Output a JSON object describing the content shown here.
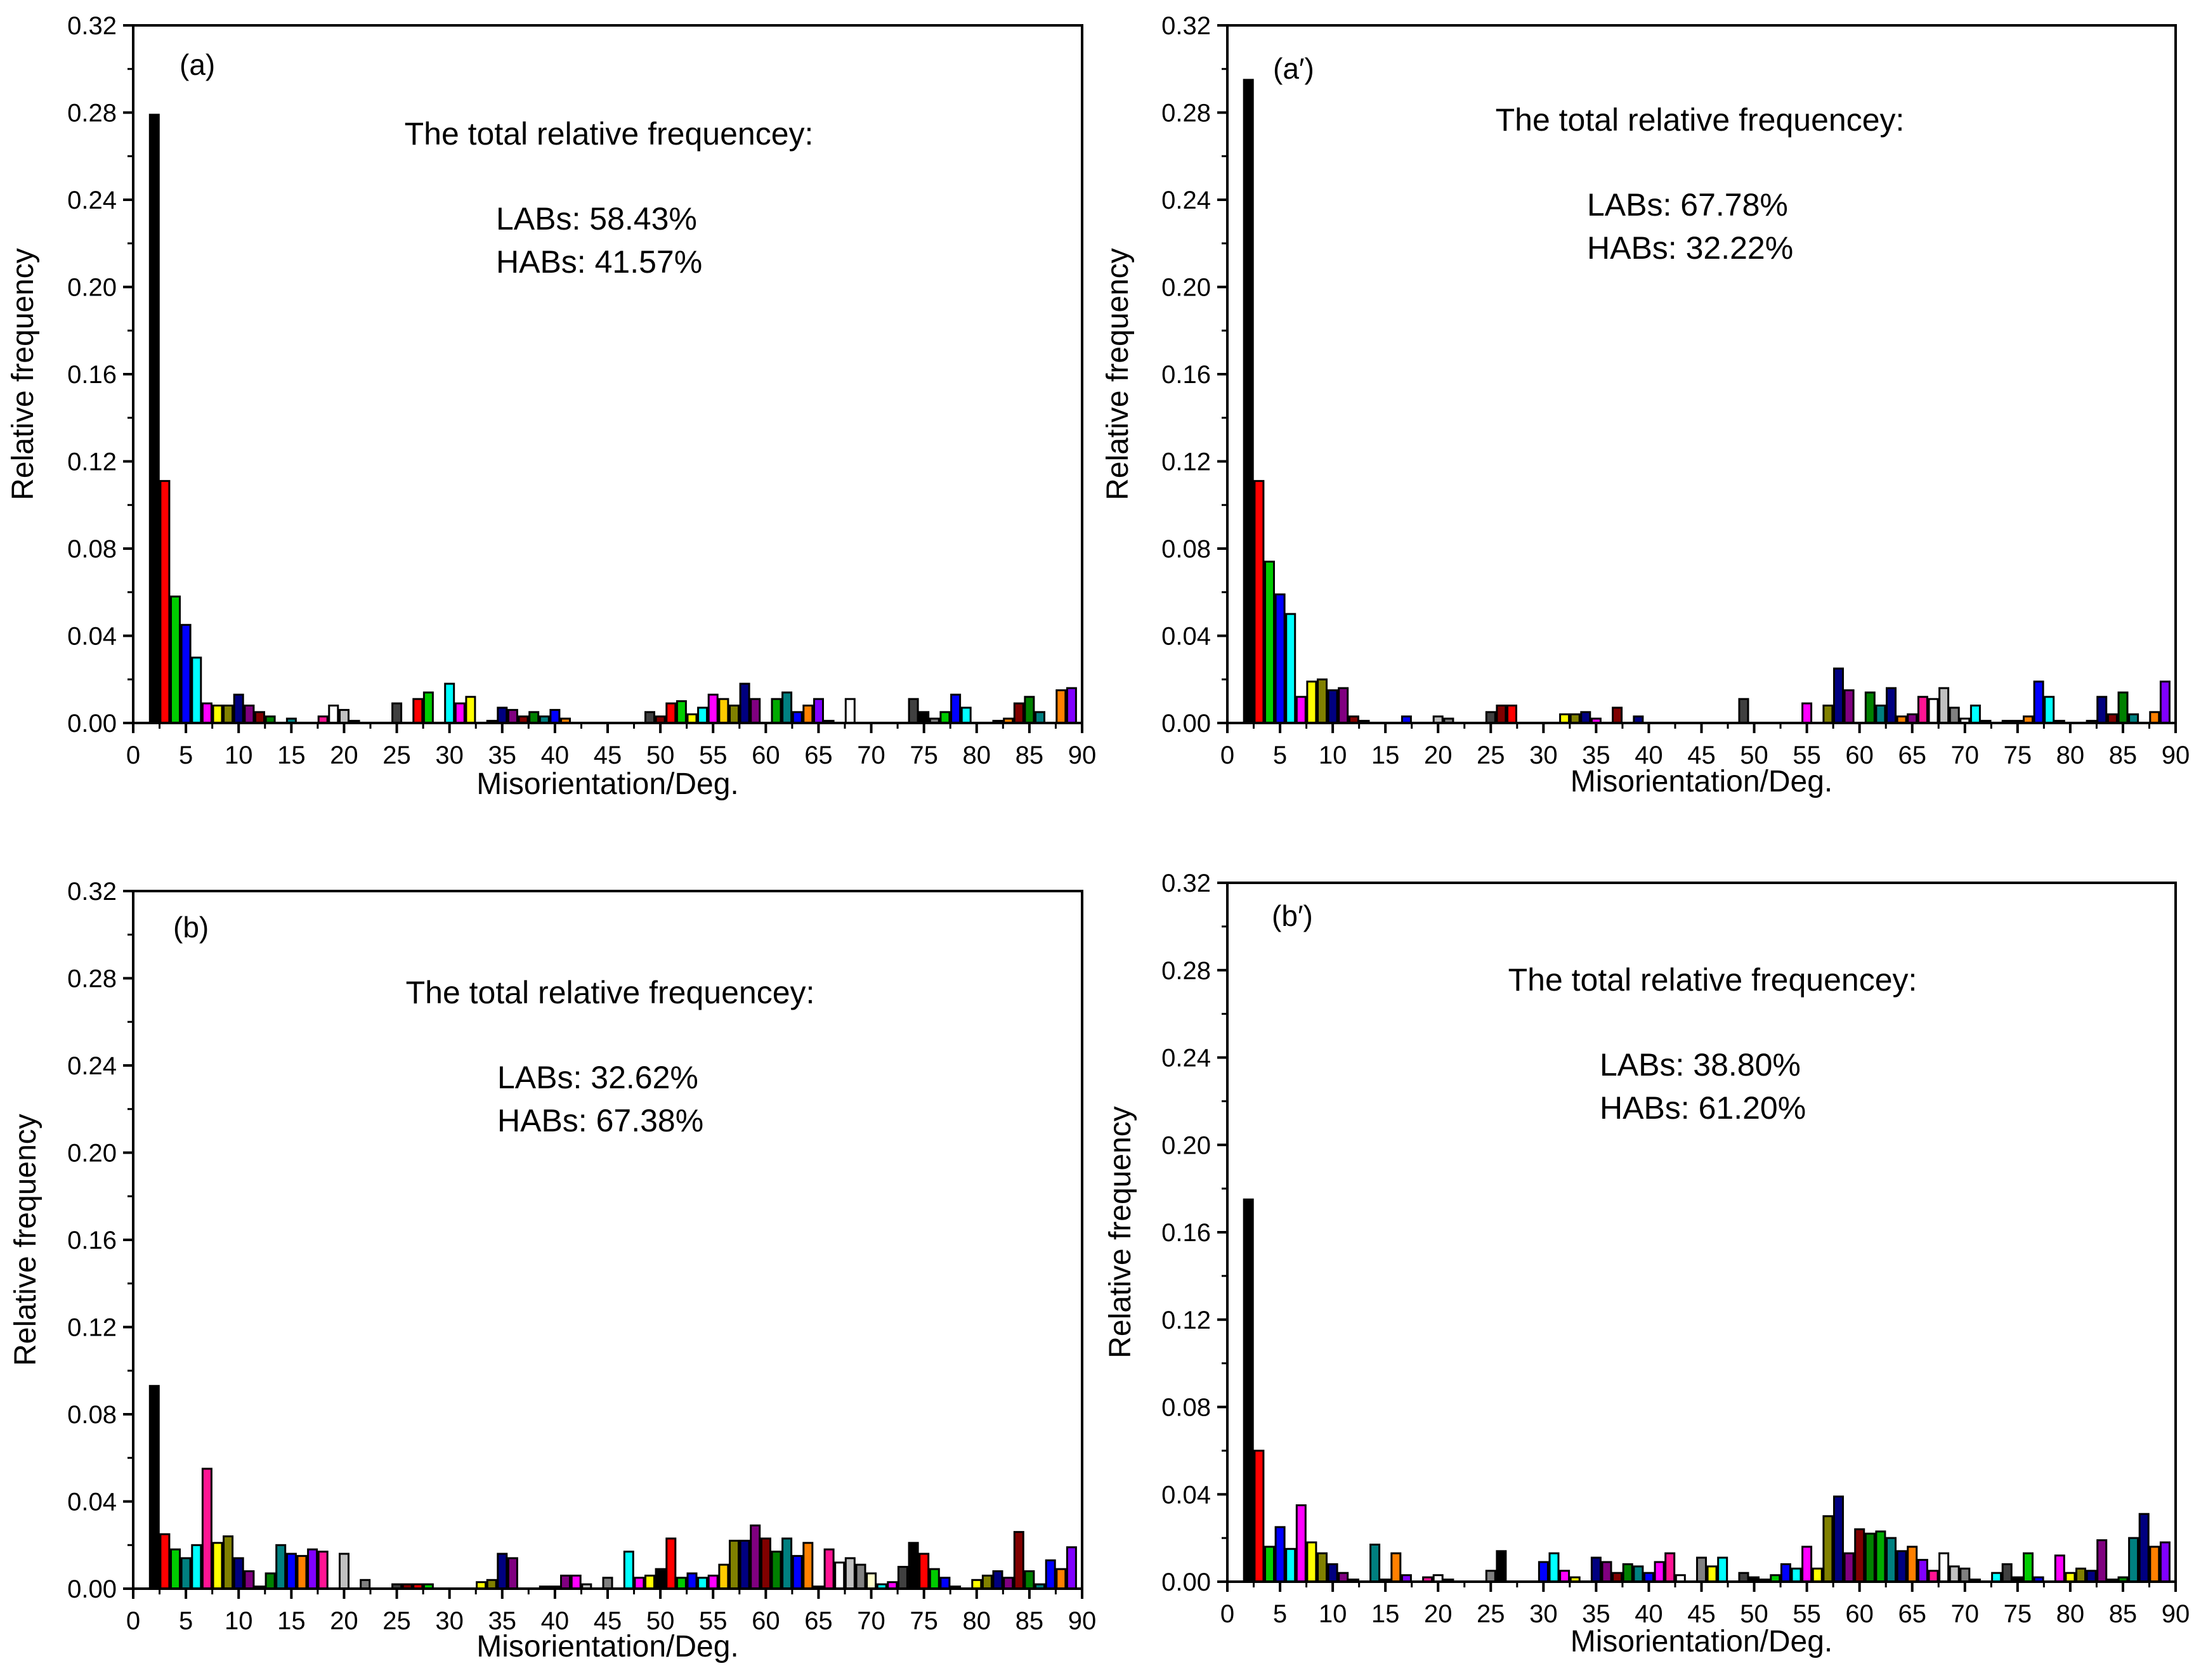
{
  "chart_data": [
    {
      "type": "bar",
      "panel_label": "(a)",
      "xlabel": "Misorientation/Deg.",
      "ylabel": "Relative frequency",
      "xlim": [
        0,
        90
      ],
      "ylim": [
        0,
        0.32
      ],
      "x_ticks": [
        "0",
        "5",
        "10",
        "15",
        "20",
        "25",
        "30",
        "35",
        "40",
        "45",
        "50",
        "55",
        "60",
        "65",
        "70",
        "75",
        "80",
        "85",
        "90"
      ],
      "y_ticks": [
        "0.00",
        "0.04",
        "0.08",
        "0.12",
        "0.16",
        "0.20",
        "0.24",
        "0.28",
        "0.32"
      ],
      "annotation_title": "The total relative frequencey:",
      "annotation_lines": [
        "LABs: 58.43%",
        "HABs: 41.57%"
      ],
      "bar_width": 1,
      "x": [
        2,
        3,
        4,
        5,
        6,
        7,
        8,
        9,
        10,
        11,
        12,
        13,
        15,
        18,
        19,
        20,
        21,
        25,
        27,
        28,
        30,
        31,
        32,
        34,
        35,
        36,
        37,
        38,
        39,
        40,
        41,
        49,
        50,
        51,
        52,
        53,
        54,
        55,
        56,
        57,
        58,
        59,
        61,
        62,
        63,
        64,
        65,
        66,
        68,
        74,
        75,
        76,
        77,
        78,
        79,
        82,
        83,
        84,
        85,
        86,
        88,
        89
      ],
      "values": [
        0.279,
        0.111,
        0.058,
        0.045,
        0.03,
        0.009,
        0.008,
        0.008,
        0.013,
        0.008,
        0.005,
        0.003,
        0.002,
        0.003,
        0.008,
        0.006,
        0.001,
        0.009,
        0.011,
        0.014,
        0.018,
        0.009,
        0.012,
        0.001,
        0.007,
        0.006,
        0.003,
        0.005,
        0.003,
        0.006,
        0.002,
        0.005,
        0.003,
        0.009,
        0.01,
        0.004,
        0.007,
        0.013,
        0.011,
        0.008,
        0.018,
        0.011,
        0.011,
        0.014,
        0.005,
        0.008,
        0.011,
        0.001,
        0.011,
        0.011,
        0.005,
        0.002,
        0.005,
        0.013,
        0.007,
        0.001,
        0.002,
        0.009,
        0.012,
        0.005,
        0.015,
        0.016
      ],
      "colors": [
        "#000000",
        "#ff0000",
        "#00cc00",
        "#0000ff",
        "#00ffff",
        "#ff00ff",
        "#ffff00",
        "#808000",
        "#000080",
        "#800080",
        "#800000",
        "#008000",
        "#008080",
        "#ff1493",
        "#ffffff",
        "#c0c0c0",
        "#808080",
        "#404040",
        "#ff0000",
        "#00cc00",
        "#00ffff",
        "#ff00ff",
        "#ffff00",
        "#808000",
        "#000080",
        "#800080",
        "#800000",
        "#008000",
        "#008080",
        "#0000ff",
        "#ff8000",
        "#404040",
        "#800000",
        "#ff0000",
        "#00cc00",
        "#ffff00",
        "#00ffff",
        "#ff00ff",
        "#ffcc00",
        "#808000",
        "#000080",
        "#800080",
        "#00aa00",
        "#008080",
        "#0000ff",
        "#ff8000",
        "#8000ff",
        "#c0c0c0",
        "#ffffff",
        "#404040",
        "#000000",
        "#808080",
        "#00cc00",
        "#0000ff",
        "#00ffff",
        "#808080",
        "#ff8000",
        "#800000",
        "#008000",
        "#008080",
        "#ff8000",
        "#8000ff"
      ]
    },
    {
      "type": "bar",
      "panel_label": "(a′)",
      "xlabel": "Misorientation/Deg.",
      "ylabel": "Relative frequency",
      "xlim": [
        0,
        90
      ],
      "ylim": [
        0,
        0.32
      ],
      "x_ticks": [
        "0",
        "5",
        "10",
        "15",
        "20",
        "25",
        "30",
        "35",
        "40",
        "45",
        "50",
        "55",
        "60",
        "65",
        "70",
        "75",
        "80",
        "85",
        "90"
      ],
      "y_ticks": [
        "0.00",
        "0.04",
        "0.08",
        "0.12",
        "0.16",
        "0.20",
        "0.24",
        "0.28",
        "0.32"
      ],
      "annotation_title": "The total relative frequencey:",
      "annotation_lines": [
        "LABs: 67.78%",
        "HABs: 32.22%"
      ],
      "bar_width": 1,
      "x": [
        2,
        3,
        4,
        5,
        6,
        7,
        8,
        9,
        10,
        11,
        12,
        13,
        17,
        20,
        21,
        25,
        26,
        27,
        32,
        33,
        34,
        35,
        37,
        39,
        49,
        55,
        57,
        58,
        59,
        61,
        62,
        63,
        64,
        65,
        66,
        67,
        68,
        69,
        70,
        71,
        72,
        74,
        75,
        76,
        77,
        78,
        79,
        82,
        83,
        84,
        85,
        86,
        88,
        89
      ],
      "values": [
        0.295,
        0.111,
        0.074,
        0.059,
        0.05,
        0.012,
        0.019,
        0.02,
        0.015,
        0.016,
        0.003,
        0.001,
        0.003,
        0.003,
        0.002,
        0.005,
        0.008,
        0.008,
        0.004,
        0.004,
        0.005,
        0.002,
        0.007,
        0.003,
        0.011,
        0.009,
        0.008,
        0.025,
        0.015,
        0.014,
        0.008,
        0.016,
        0.003,
        0.004,
        0.012,
        0.011,
        0.016,
        0.007,
        0.002,
        0.008,
        0.001,
        0.001,
        0.001,
        0.003,
        0.019,
        0.012,
        0.001,
        0.001,
        0.012,
        0.004,
        0.014,
        0.004,
        0.005,
        0.019
      ],
      "colors": [
        "#000000",
        "#ff0000",
        "#00cc00",
        "#0000ff",
        "#00ffff",
        "#ff00ff",
        "#ffff00",
        "#808000",
        "#000080",
        "#800080",
        "#800000",
        "#000080",
        "#0000ff",
        "#c0c0c0",
        "#808080",
        "#404040",
        "#800000",
        "#ff0000",
        "#ffff00",
        "#808000",
        "#000080",
        "#ff00ff",
        "#800000",
        "#000080",
        "#404040",
        "#ff00ff",
        "#808000",
        "#000080",
        "#800080",
        "#008000",
        "#008080",
        "#000080",
        "#ff8000",
        "#800080",
        "#ff1493",
        "#ffffff",
        "#c0c0c0",
        "#808080",
        "#ffffff",
        "#00ffff",
        "#ff00ff",
        "#404040",
        "#800000",
        "#ff8000",
        "#0000ff",
        "#00ffff",
        "#800080",
        "#808000",
        "#000080",
        "#800000",
        "#008000",
        "#008080",
        "#ff8000",
        "#8000ff"
      ]
    },
    {
      "type": "bar",
      "panel_label": "(b)",
      "xlabel": "Misorientation/Deg.",
      "ylabel": "Relative frequency",
      "xlim": [
        0,
        90
      ],
      "ylim": [
        0,
        0.32
      ],
      "x_ticks": [
        "0",
        "5",
        "10",
        "15",
        "20",
        "25",
        "30",
        "35",
        "40",
        "45",
        "50",
        "55",
        "60",
        "65",
        "70",
        "75",
        "80",
        "85",
        "90"
      ],
      "y_ticks": [
        "0.00",
        "0.04",
        "0.08",
        "0.12",
        "0.16",
        "0.20",
        "0.24",
        "0.28",
        "0.32"
      ],
      "annotation_title": "The total relative frequencey:",
      "annotation_lines": [
        "LABs: 32.62%",
        "HABs: 67.38%"
      ],
      "bar_width": 1,
      "x": [
        2,
        3,
        4,
        5,
        6,
        7,
        8,
        9,
        10,
        11,
        12,
        13,
        14,
        15,
        16,
        17,
        18,
        20,
        22,
        25,
        26,
        27,
        28,
        33,
        34,
        35,
        36,
        39,
        40,
        41,
        42,
        43,
        45,
        47,
        48,
        49,
        50,
        51,
        52,
        53,
        54,
        55,
        56,
        57,
        58,
        59,
        60,
        61,
        62,
        63,
        64,
        65,
        66,
        67,
        68,
        69,
        70,
        71,
        72,
        73,
        74,
        75,
        76,
        77,
        78,
        80,
        81,
        82,
        83,
        84,
        85,
        86,
        87,
        88,
        89
      ],
      "values": [
        0.093,
        0.025,
        0.018,
        0.014,
        0.02,
        0.055,
        0.021,
        0.024,
        0.014,
        0.008,
        0.001,
        0.007,
        0.02,
        0.016,
        0.015,
        0.018,
        0.017,
        0.016,
        0.004,
        0.002,
        0.002,
        0.002,
        0.002,
        0.003,
        0.004,
        0.016,
        0.014,
        0.001,
        0.001,
        0.006,
        0.006,
        0.002,
        0.005,
        0.017,
        0.005,
        0.006,
        0.009,
        0.023,
        0.005,
        0.007,
        0.005,
        0.006,
        0.011,
        0.022,
        0.022,
        0.029,
        0.023,
        0.017,
        0.023,
        0.015,
        0.021,
        0.001,
        0.018,
        0.012,
        0.014,
        0.011,
        0.007,
        0.002,
        0.003,
        0.01,
        0.021,
        0.016,
        0.009,
        0.005,
        0.001,
        0.004,
        0.006,
        0.008,
        0.005,
        0.026,
        0.008,
        0.002,
        0.013,
        0.009,
        0.019
      ],
      "colors": [
        "#000000",
        "#ff0000",
        "#00cc00",
        "#008080",
        "#00ffff",
        "#ff1493",
        "#ffff00",
        "#808000",
        "#000080",
        "#800080",
        "#800000",
        "#008000",
        "#008080",
        "#0000ff",
        "#ff8000",
        "#8000ff",
        "#ff1493",
        "#c0c0c0",
        "#808080",
        "#404040",
        "#800000",
        "#ff0000",
        "#00cc00",
        "#ffff00",
        "#808000",
        "#000080",
        "#800080",
        "#ffffff",
        "#000080",
        "#800080",
        "#ff00ff",
        "#c0c0c0",
        "#808080",
        "#00ffff",
        "#ff00ff",
        "#ffff00",
        "#000000",
        "#ff0000",
        "#00cc00",
        "#0000ff",
        "#00ffff",
        "#ff00ff",
        "#ffcc00",
        "#808000",
        "#000080",
        "#800080",
        "#800000",
        "#008000",
        "#008080",
        "#0000ff",
        "#ff8000",
        "#8000ff",
        "#ff1493",
        "#ffffff",
        "#c0c0c0",
        "#808080",
        "#ffffcc",
        "#00ffff",
        "#ff00ff",
        "#404040",
        "#000000",
        "#ff0000",
        "#00cc00",
        "#0000ff",
        "#00ffff",
        "#ffff00",
        "#808000",
        "#000080",
        "#800080",
        "#800000",
        "#008000",
        "#008080",
        "#0000ff",
        "#ff8000",
        "#8000ff"
      ]
    },
    {
      "type": "bar",
      "panel_label": "(b′)",
      "xlabel": "Misorientation/Deg.",
      "ylabel": "Relative frequency",
      "xlim": [
        0,
        90
      ],
      "ylim": [
        0,
        0.32
      ],
      "x_ticks": [
        "0",
        "5",
        "10",
        "15",
        "20",
        "25",
        "30",
        "35",
        "40",
        "45",
        "50",
        "55",
        "60",
        "65",
        "70",
        "75",
        "80",
        "85",
        "90"
      ],
      "y_ticks": [
        "0.00",
        "0.04",
        "0.08",
        "0.12",
        "0.16",
        "0.20",
        "0.24",
        "0.28",
        "0.32"
      ],
      "annotation_title": "The total relative frequencey:",
      "annotation_lines": [
        "LABs: 38.80%",
        "HABs: 61.20%"
      ],
      "bar_width": 1,
      "x": [
        2,
        3,
        4,
        5,
        6,
        7,
        8,
        9,
        10,
        11,
        12,
        14,
        15,
        16,
        17,
        19,
        20,
        21,
        25,
        26,
        30,
        31,
        32,
        33,
        35,
        36,
        37,
        38,
        39,
        40,
        41,
        42,
        43,
        45,
        46,
        47,
        49,
        50,
        51,
        52,
        53,
        54,
        55,
        56,
        57,
        58,
        59,
        60,
        61,
        62,
        63,
        64,
        65,
        66,
        67,
        68,
        69,
        70,
        71,
        73,
        74,
        75,
        76,
        77,
        79,
        80,
        81,
        82,
        83,
        84,
        85,
        86,
        87,
        88,
        89
      ],
      "values": [
        0.175,
        0.06,
        0.016,
        0.025,
        0.015,
        0.035,
        0.018,
        0.013,
        0.008,
        0.004,
        0.001,
        0.017,
        0.001,
        0.013,
        0.003,
        0.002,
        0.003,
        0.001,
        0.005,
        0.014,
        0.009,
        0.013,
        0.005,
        0.002,
        0.011,
        0.009,
        0.004,
        0.008,
        0.007,
        0.004,
        0.009,
        0.013,
        0.003,
        0.011,
        0.007,
        0.011,
        0.004,
        0.002,
        0.001,
        0.003,
        0.008,
        0.006,
        0.016,
        0.006,
        0.03,
        0.039,
        0.013,
        0.024,
        0.022,
        0.023,
        0.02,
        0.014,
        0.016,
        0.01,
        0.005,
        0.013,
        0.007,
        0.006,
        0.001,
        0.004,
        0.008,
        0.002,
        0.013,
        0.002,
        0.012,
        0.004,
        0.006,
        0.005,
        0.019,
        0.001,
        0.002,
        0.02,
        0.031,
        0.016,
        0.018
      ],
      "colors": [
        "#000000",
        "#ff0000",
        "#00cc00",
        "#0000ff",
        "#00ffff",
        "#ff00ff",
        "#ffff00",
        "#808000",
        "#000080",
        "#800080",
        "#800000",
        "#008080",
        "#0000ff",
        "#ff8000",
        "#8000ff",
        "#ff1493",
        "#ffffff",
        "#c0c0c0",
        "#808080",
        "#000000",
        "#0000ff",
        "#00ffff",
        "#ff00ff",
        "#ffff00",
        "#000080",
        "#800080",
        "#800000",
        "#008000",
        "#008080",
        "#0000ff",
        "#ff00ff",
        "#ff1493",
        "#ffffff",
        "#808080",
        "#ffff00",
        "#00ffff",
        "#404040",
        "#000000",
        "#ff0000",
        "#00cc00",
        "#0000ff",
        "#00ffff",
        "#ff00ff",
        "#ffff00",
        "#808000",
        "#000080",
        "#800080",
        "#800000",
        "#008000",
        "#00aa00",
        "#008080",
        "#000080",
        "#ff8000",
        "#8000ff",
        "#ff1493",
        "#ffffff",
        "#c0c0c0",
        "#808080",
        "#ffffcc",
        "#00ffff",
        "#404040",
        "#000000",
        "#00cc00",
        "#0000ff",
        "#ff00ff",
        "#ffff00",
        "#808000",
        "#000080",
        "#800080",
        "#800000",
        "#008000",
        "#008080",
        "#000080",
        "#ff8000",
        "#8000ff"
      ]
    }
  ]
}
